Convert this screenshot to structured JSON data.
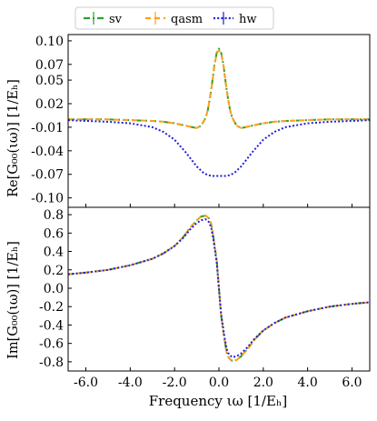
{
  "legend": {
    "entries": [
      {
        "label": "sv",
        "color": "#2ca02c",
        "dash": "7,3,2,3"
      },
      {
        "label": "qasm",
        "color": "#ff9f1c",
        "dash": "6,4"
      },
      {
        "label": "hw",
        "color": "#1f1fd8",
        "dash": "2,2.2"
      }
    ]
  },
  "xlabel": "Frequency ιω [1/Eₕ]",
  "chart_data": [
    {
      "type": "line",
      "ylabel": "Re[G₀₀(ιω)] [1/Eₕ]",
      "xlim": [
        -6.8,
        6.8
      ],
      "ylim": [
        -0.112,
        0.108
      ],
      "x_ticks": [
        -6.0,
        -4.0,
        -2.0,
        0.0,
        2.0,
        4.0,
        6.0
      ],
      "y_ticks": [
        0.1,
        0.07,
        0.05,
        0.02,
        -0.01,
        -0.04,
        -0.07,
        -0.1
      ],
      "y_tick_labels": [
        "0.10",
        "0.07",
        "0.05",
        "0.02",
        "-0.01",
        "-0.04",
        "-0.07",
        "-0.10"
      ],
      "series": [
        {
          "name": "sv",
          "x": [
            -6.8,
            -6,
            -5,
            -4,
            -3,
            -2.5,
            -2,
            -1.5,
            -1.2,
            -1,
            -0.8,
            -0.6,
            -0.5,
            -0.4,
            -0.3,
            -0.2,
            -0.1,
            0,
            0.1,
            0.2,
            0.3,
            0.4,
            0.5,
            0.6,
            0.8,
            1,
            1.2,
            1.5,
            2,
            2.5,
            3,
            4,
            5,
            6,
            6.8
          ],
          "values": [
            0,
            0,
            0,
            -0.001,
            -0.002,
            -0.003,
            -0.005,
            -0.008,
            -0.01,
            -0.011,
            -0.008,
            0.002,
            0.012,
            0.028,
            0.048,
            0.07,
            0.085,
            0.09,
            0.085,
            0.07,
            0.048,
            0.028,
            0.012,
            0.002,
            -0.008,
            -0.011,
            -0.01,
            -0.008,
            -0.005,
            -0.003,
            -0.002,
            -0.001,
            0,
            0,
            0
          ]
        },
        {
          "name": "qasm",
          "x": [
            -6.8,
            -6,
            -5,
            -4,
            -3,
            -2.5,
            -2,
            -1.5,
            -1.2,
            -1,
            -0.8,
            -0.6,
            -0.5,
            -0.4,
            -0.3,
            -0.2,
            -0.1,
            0,
            0.1,
            0.2,
            0.3,
            0.4,
            0.5,
            0.6,
            0.8,
            1,
            1.2,
            1.5,
            2,
            2.5,
            3,
            4,
            5,
            6,
            6.8
          ],
          "values": [
            0,
            0,
            0,
            -0.001,
            -0.002,
            -0.003,
            -0.005,
            -0.008,
            -0.01,
            -0.011,
            -0.008,
            0.002,
            0.012,
            0.028,
            0.047,
            0.069,
            0.084,
            0.088,
            0.084,
            0.069,
            0.047,
            0.028,
            0.012,
            0.002,
            -0.008,
            -0.011,
            -0.01,
            -0.008,
            -0.005,
            -0.003,
            -0.002,
            -0.001,
            0,
            0,
            0
          ]
        },
        {
          "name": "hw",
          "x": [
            -6.8,
            -6,
            -5,
            -4,
            -3,
            -2.5,
            -2,
            -1.5,
            -1,
            -0.7,
            -0.5,
            -0.3,
            0,
            0.3,
            0.5,
            0.7,
            1,
            1.5,
            2,
            2.5,
            3,
            4,
            5,
            6,
            6.8
          ],
          "values": [
            -0.001,
            -0.002,
            -0.003,
            -0.005,
            -0.01,
            -0.016,
            -0.026,
            -0.042,
            -0.06,
            -0.068,
            -0.071,
            -0.072,
            -0.072,
            -0.072,
            -0.071,
            -0.068,
            -0.06,
            -0.042,
            -0.026,
            -0.016,
            -0.01,
            -0.005,
            -0.003,
            -0.002,
            -0.001
          ]
        }
      ]
    },
    {
      "type": "line",
      "ylabel": "Im[G₀₀(ιω)] [1/Eₕ]",
      "xlim": [
        -6.8,
        6.8
      ],
      "ylim": [
        -0.9,
        0.88
      ],
      "x_ticks": [
        -6.0,
        -4.0,
        -2.0,
        0.0,
        2.0,
        4.0,
        6.0
      ],
      "x_tick_labels": [
        "-6.0",
        "-4.0",
        "-2.0",
        "0.0",
        "2.0",
        "4.0",
        "6.0"
      ],
      "y_ticks": [
        0.8,
        0.6,
        0.4,
        0.2,
        0.0,
        -0.2,
        -0.4,
        -0.6,
        -0.8
      ],
      "y_tick_labels": [
        "0.8",
        "0.6",
        "0.4",
        "0.2",
        "0.0",
        "-0.2",
        "-0.4",
        "-0.6",
        "-0.8"
      ],
      "series": [
        {
          "name": "sv",
          "x": [
            -6.8,
            -6,
            -5,
            -4,
            -3,
            -2.5,
            -2,
            -1.6,
            -1.3,
            -1,
            -0.8,
            -0.6,
            -0.45,
            -0.35,
            -0.25,
            -0.1,
            0,
            0.1,
            0.25,
            0.35,
            0.45,
            0.6,
            0.8,
            1,
            1.3,
            1.6,
            2,
            2.5,
            3,
            4,
            5,
            6,
            6.8
          ],
          "values": [
            0.152,
            0.17,
            0.2,
            0.25,
            0.32,
            0.38,
            0.46,
            0.56,
            0.66,
            0.74,
            0.78,
            0.79,
            0.76,
            0.7,
            0.56,
            0.3,
            0.0,
            -0.3,
            -0.56,
            -0.7,
            -0.76,
            -0.79,
            -0.78,
            -0.74,
            -0.66,
            -0.56,
            -0.46,
            -0.38,
            -0.32,
            -0.25,
            -0.2,
            -0.17,
            -0.152
          ]
        },
        {
          "name": "qasm",
          "x": [
            -6.8,
            -6,
            -5,
            -4,
            -3,
            -2.5,
            -2,
            -1.6,
            -1.3,
            -1,
            -0.8,
            -0.6,
            -0.45,
            -0.35,
            -0.25,
            -0.1,
            0,
            0.1,
            0.25,
            0.35,
            0.45,
            0.6,
            0.8,
            1,
            1.3,
            1.6,
            2,
            2.5,
            3,
            4,
            5,
            6,
            6.8
          ],
          "values": [
            0.152,
            0.17,
            0.2,
            0.25,
            0.32,
            0.38,
            0.46,
            0.56,
            0.66,
            0.74,
            0.78,
            0.79,
            0.76,
            0.7,
            0.56,
            0.3,
            0.0,
            -0.3,
            -0.56,
            -0.7,
            -0.76,
            -0.79,
            -0.78,
            -0.74,
            -0.66,
            -0.56,
            -0.46,
            -0.38,
            -0.32,
            -0.25,
            -0.2,
            -0.17,
            -0.152
          ]
        },
        {
          "name": "hw",
          "x": [
            -6.8,
            -6,
            -5,
            -4,
            -3,
            -2.5,
            -2,
            -1.6,
            -1.3,
            -1,
            -0.8,
            -0.6,
            -0.45,
            -0.35,
            -0.25,
            -0.1,
            0,
            0.1,
            0.25,
            0.35,
            0.45,
            0.6,
            0.8,
            1,
            1.3,
            1.6,
            2,
            2.5,
            3,
            4,
            5,
            6,
            6.8
          ],
          "values": [
            0.152,
            0.17,
            0.2,
            0.25,
            0.32,
            0.38,
            0.46,
            0.55,
            0.64,
            0.71,
            0.74,
            0.75,
            0.72,
            0.66,
            0.53,
            0.28,
            0.0,
            -0.28,
            -0.53,
            -0.66,
            -0.72,
            -0.75,
            -0.74,
            -0.71,
            -0.64,
            -0.55,
            -0.46,
            -0.38,
            -0.32,
            -0.25,
            -0.2,
            -0.17,
            -0.152
          ]
        }
      ]
    }
  ]
}
